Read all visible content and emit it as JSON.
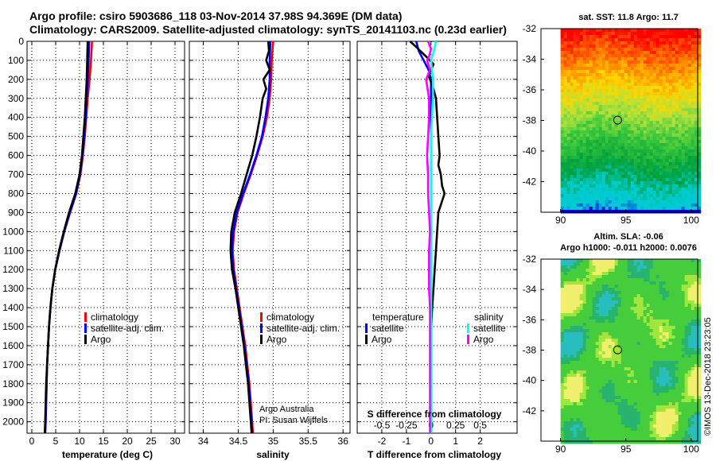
{
  "header": {
    "line1": "Argo profile: csiro 5903686_118 03-Nov-2014 37.98S 94.369E (DM data)",
    "line2": "Climatology: CARS2009. Satellite-adjusted climatology: synTS_20141103.nc (0.23d earlier)"
  },
  "credit": {
    "line1": "Argo Australia",
    "line2": "PI: Susan Wijffels"
  },
  "imos_stamp": "©IMOS 13-Dec-2018 23:23:05",
  "legend_profiles": [
    {
      "label": "climatology",
      "color": "#ff0000"
    },
    {
      "label": "satellite-adj. clim.",
      "color": "#0000ff"
    },
    {
      "label": "Argo",
      "color": "#000000"
    }
  ],
  "legend_diff": {
    "temperature_title": "temperature",
    "salinity_title": "salinity",
    "temperature": [
      {
        "label": "satellite",
        "color": "#0000ff"
      },
      {
        "label": "Argo",
        "color": "#000000"
      }
    ],
    "salinity": [
      {
        "label": "satellite",
        "color": "#00ffff"
      },
      {
        "label": "Argo",
        "color": "#ff00ff"
      }
    ]
  },
  "map_top": {
    "title": "sat. SST: 11.8 Argo: 11.7",
    "x_ticks": [
      "90",
      "95",
      "100"
    ],
    "y_ticks": [
      "-32",
      "-34",
      "-36",
      "-38",
      "-40",
      "-42"
    ],
    "lon_range": [
      88.5,
      100.5
    ],
    "lat_range": [
      -44.0,
      -32.0
    ],
    "float_position": {
      "lon": 94.369,
      "lat": -37.98
    }
  },
  "map_bottom": {
    "title1": "Altim. SLA: -0.06",
    "title2": "Argo h1000: -0.011 h2000: 0.0076",
    "x_ticks": [
      "90",
      "95",
      "100"
    ],
    "y_ticks": [
      "-32",
      "-34",
      "-36",
      "-38",
      "-40",
      "-42"
    ],
    "lon_range": [
      88.5,
      100.5
    ],
    "lat_range": [
      -44.0,
      -32.0
    ],
    "float_position": {
      "lon": 94.369,
      "lat": -37.98
    }
  },
  "chart_data": [
    {
      "type": "line",
      "title": "",
      "xlabel": "temperature (deg C)",
      "ylabel": "",
      "xlim": [
        -1,
        32
      ],
      "ylim": [
        2060,
        0
      ],
      "x_ticks": [
        "0",
        "5",
        "10",
        "15",
        "20",
        "25",
        "30"
      ],
      "y_ticks": [
        "0",
        "100",
        "200",
        "300",
        "400",
        "500",
        "600",
        "700",
        "800",
        "900",
        "1000",
        "1100",
        "1200",
        "1300",
        "1400",
        "1500",
        "1600",
        "1700",
        "1800",
        "1900",
        "2000"
      ],
      "grid": true,
      "legend": "lower-center",
      "series": [
        {
          "name": "climatology",
          "color": "#ff0000",
          "points": [
            [
              12.6,
              0
            ],
            [
              12.4,
              100
            ],
            [
              12.1,
              200
            ],
            [
              11.7,
              300
            ],
            [
              11.4,
              400
            ],
            [
              11.1,
              500
            ],
            [
              10.7,
              600
            ],
            [
              10.2,
              700
            ],
            [
              9.3,
              800
            ],
            [
              8.0,
              900
            ],
            [
              6.8,
              1000
            ],
            [
              5.8,
              1100
            ],
            [
              4.9,
              1200
            ],
            [
              4.3,
              1300
            ],
            [
              3.9,
              1400
            ],
            [
              3.6,
              1500
            ],
            [
              3.4,
              1600
            ],
            [
              3.2,
              1700
            ],
            [
              3.1,
              1800
            ],
            [
              3.0,
              1900
            ],
            [
              2.9,
              2000
            ],
            [
              2.8,
              2060
            ]
          ]
        },
        {
          "name": "satellite-adj. clim.",
          "color": "#0000ff",
          "points": [
            [
              12.0,
              0
            ],
            [
              11.9,
              100
            ],
            [
              11.7,
              200
            ],
            [
              11.5,
              300
            ],
            [
              11.3,
              400
            ],
            [
              11.0,
              500
            ],
            [
              10.6,
              600
            ],
            [
              10.1,
              700
            ],
            [
              9.3,
              800
            ],
            [
              8.0,
              900
            ],
            [
              6.8,
              1000
            ],
            [
              5.8,
              1100
            ],
            [
              4.9,
              1200
            ],
            [
              4.3,
              1300
            ],
            [
              3.9,
              1400
            ],
            [
              3.6,
              1500
            ],
            [
              3.4,
              1600
            ],
            [
              3.2,
              1700
            ],
            [
              3.1,
              1800
            ],
            [
              3.0,
              1900
            ],
            [
              2.9,
              2000
            ],
            [
              2.8,
              2060
            ]
          ]
        },
        {
          "name": "Argo",
          "color": "#000000",
          "points": [
            [
              11.7,
              0
            ],
            [
              11.6,
              100
            ],
            [
              11.5,
              200
            ],
            [
              11.3,
              300
            ],
            [
              11.1,
              400
            ],
            [
              10.8,
              500
            ],
            [
              10.5,
              600
            ],
            [
              10.0,
              700
            ],
            [
              9.1,
              800
            ],
            [
              7.8,
              900
            ],
            [
              6.7,
              1000
            ],
            [
              5.7,
              1100
            ],
            [
              4.9,
              1200
            ],
            [
              4.3,
              1300
            ],
            [
              3.9,
              1400
            ],
            [
              3.6,
              1500
            ],
            [
              3.4,
              1600
            ],
            [
              3.2,
              1700
            ],
            [
              3.0,
              1800
            ],
            [
              2.9,
              1900
            ],
            [
              2.8,
              2000
            ],
            [
              2.7,
              2060
            ]
          ]
        }
      ]
    },
    {
      "type": "line",
      "title": "",
      "xlabel": "salinity",
      "ylabel": "",
      "xlim": [
        33.8,
        36.1
      ],
      "ylim": [
        2060,
        0
      ],
      "x_ticks": [
        "34",
        "34.5",
        "35",
        "35.5",
        "36"
      ],
      "grid": true,
      "legend": "lower-center",
      "series": [
        {
          "name": "climatology",
          "color": "#ff0000",
          "points": [
            [
              35.0,
              0
            ],
            [
              34.98,
              100
            ],
            [
              34.97,
              200
            ],
            [
              34.95,
              300
            ],
            [
              34.91,
              400
            ],
            [
              34.85,
              500
            ],
            [
              34.77,
              600
            ],
            [
              34.68,
              700
            ],
            [
              34.58,
              800
            ],
            [
              34.49,
              900
            ],
            [
              34.44,
              1000
            ],
            [
              34.42,
              1100
            ],
            [
              34.44,
              1200
            ],
            [
              34.48,
              1300
            ],
            [
              34.52,
              1400
            ],
            [
              34.56,
              1500
            ],
            [
              34.6,
              1600
            ],
            [
              34.63,
              1700
            ],
            [
              34.66,
              1800
            ],
            [
              34.68,
              1900
            ],
            [
              34.7,
              2000
            ],
            [
              34.71,
              2060
            ]
          ]
        },
        {
          "name": "satellite-adj. clim.",
          "color": "#0000ff",
          "points": [
            [
              34.96,
              0
            ],
            [
              34.95,
              100
            ],
            [
              34.95,
              200
            ],
            [
              34.93,
              300
            ],
            [
              34.89,
              400
            ],
            [
              34.84,
              500
            ],
            [
              34.76,
              600
            ],
            [
              34.67,
              700
            ],
            [
              34.57,
              800
            ],
            [
              34.48,
              900
            ],
            [
              34.43,
              1000
            ],
            [
              34.41,
              1100
            ],
            [
              34.43,
              1200
            ],
            [
              34.47,
              1300
            ],
            [
              34.51,
              1400
            ],
            [
              34.55,
              1500
            ],
            [
              34.59,
              1600
            ],
            [
              34.62,
              1700
            ],
            [
              34.65,
              1800
            ],
            [
              34.67,
              1900
            ],
            [
              34.69,
              2000
            ],
            [
              34.7,
              2060
            ]
          ]
        },
        {
          "name": "Argo",
          "color": "#000000",
          "points": [
            [
              34.93,
              0
            ],
            [
              34.94,
              50
            ],
            [
              34.9,
              100
            ],
            [
              34.95,
              150
            ],
            [
              34.86,
              200
            ],
            [
              34.9,
              250
            ],
            [
              34.85,
              300
            ],
            [
              34.81,
              400
            ],
            [
              34.76,
              500
            ],
            [
              34.7,
              600
            ],
            [
              34.62,
              700
            ],
            [
              34.54,
              800
            ],
            [
              34.45,
              900
            ],
            [
              34.4,
              1000
            ],
            [
              34.39,
              1100
            ],
            [
              34.41,
              1200
            ],
            [
              34.46,
              1300
            ],
            [
              34.5,
              1400
            ],
            [
              34.54,
              1500
            ],
            [
              34.58,
              1600
            ],
            [
              34.61,
              1700
            ],
            [
              34.64,
              1800
            ],
            [
              34.66,
              1900
            ],
            [
              34.68,
              2000
            ],
            [
              34.69,
              2060
            ]
          ]
        }
      ]
    },
    {
      "type": "line",
      "title": "",
      "xlabel": "T difference from climatology",
      "ylabel": "",
      "secondary_xlabel": "S difference from climatology",
      "xlim": [
        -3,
        3.5
      ],
      "ylim": [
        2060,
        0
      ],
      "x_ticks": [
        {
          "value": -2,
          "label": "-2"
        },
        {
          "value": -1,
          "label": "-1"
        },
        {
          "value": 0,
          "label": "0"
        },
        {
          "value": 1,
          "label": "1"
        },
        {
          "value": 2,
          "label": "2"
        }
      ],
      "secondary_x_ticks": [
        {
          "value": -0.5,
          "label": "-0.5"
        },
        {
          "value": -0.25,
          "label": "-0.25"
        },
        {
          "value": 0,
          "label": "0"
        },
        {
          "value": 0.25,
          "label": "0.25"
        },
        {
          "value": 0.5,
          "label": "0.5"
        }
      ],
      "secondary_xlim": [
        -0.75,
        0.875
      ],
      "grid": true,
      "legend": "lower-center",
      "series": [
        {
          "name": "temperature satellite",
          "color": "#0000ff",
          "axis": "T",
          "points": [
            [
              -0.6,
              0
            ],
            [
              -0.5,
              50
            ],
            [
              -0.3,
              100
            ],
            [
              -0.1,
              150
            ],
            [
              0,
              200
            ],
            [
              0,
              2060
            ]
          ]
        },
        {
          "name": "temperature Argo",
          "color": "#000000",
          "axis": "T",
          "points": [
            [
              -0.85,
              0
            ],
            [
              -0.6,
              30
            ],
            [
              -0.2,
              80
            ],
            [
              0.1,
              120
            ],
            [
              -0.1,
              180
            ],
            [
              0.1,
              250
            ],
            [
              0.2,
              300
            ],
            [
              0.25,
              400
            ],
            [
              0.3,
              500
            ],
            [
              0.35,
              600
            ],
            [
              0.3,
              650
            ],
            [
              0.4,
              700
            ],
            [
              0.45,
              760
            ],
            [
              0.55,
              800
            ],
            [
              0.4,
              860
            ],
            [
              0.3,
              900
            ],
            [
              0.25,
              1000
            ],
            [
              0.2,
              1100
            ],
            [
              0.15,
              1200
            ],
            [
              0.1,
              1300
            ],
            [
              0.05,
              1400
            ],
            [
              0,
              1500
            ],
            [
              0,
              1600
            ],
            [
              0,
              1700
            ],
            [
              0,
              1800
            ],
            [
              0,
              1900
            ],
            [
              0,
              2000
            ],
            [
              0,
              2060
            ]
          ]
        },
        {
          "name": "salinity satellite",
          "color": "#00ffff",
          "axis": "S",
          "points": [
            [
              0.05,
              0
            ],
            [
              0.03,
              50
            ],
            [
              0.0,
              100
            ],
            [
              0.02,
              200
            ],
            [
              0.02,
              300
            ],
            [
              0.01,
              400
            ],
            [
              0,
              500
            ],
            [
              0,
              2060
            ]
          ]
        },
        {
          "name": "salinity Argo",
          "color": "#ff00ff",
          "axis": "S",
          "points": [
            [
              -0.03,
              0
            ],
            [
              0.0,
              40
            ],
            [
              -0.02,
              80
            ],
            [
              -0.04,
              100
            ],
            [
              -0.01,
              150
            ],
            [
              -0.05,
              200
            ],
            [
              -0.02,
              300
            ],
            [
              -0.02,
              400
            ],
            [
              -0.03,
              500
            ],
            [
              -0.04,
              600
            ],
            [
              -0.03,
              700
            ],
            [
              -0.03,
              800
            ],
            [
              -0.02,
              900
            ],
            [
              -0.01,
              1000
            ],
            [
              -0.02,
              1100
            ],
            [
              -0.02,
              1200
            ],
            [
              -0.02,
              1300
            ],
            [
              -0.01,
              1400
            ],
            [
              -0.01,
              1500
            ],
            [
              -0.01,
              1600
            ],
            [
              -0.01,
              1700
            ],
            [
              -0.01,
              1800
            ],
            [
              -0.01,
              1900
            ],
            [
              -0.01,
              2000
            ],
            [
              -0.01,
              2060
            ]
          ]
        }
      ]
    }
  ]
}
